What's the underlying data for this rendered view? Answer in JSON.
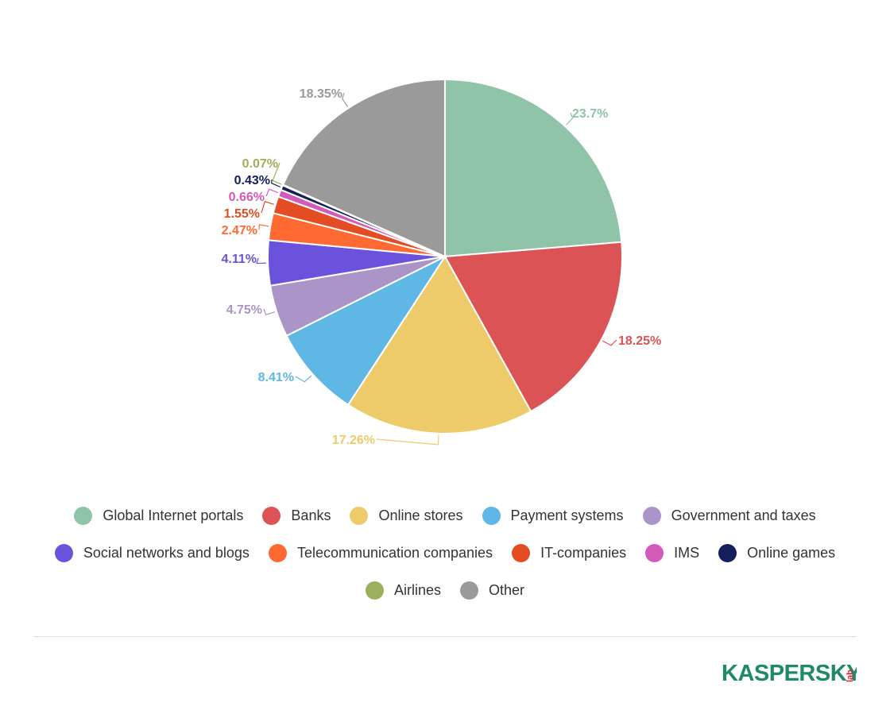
{
  "chart_data": {
    "type": "pie",
    "slices": [
      {
        "name": "Global Internet portals",
        "value": 23.7,
        "label": "23.7%",
        "color": "#8fc4a8"
      },
      {
        "name": "Banks",
        "value": 18.25,
        "label": "18.25%",
        "color": "#dc5355"
      },
      {
        "name": "Online stores",
        "value": 17.26,
        "label": "17.26%",
        "color": "#eecb6a"
      },
      {
        "name": "Payment systems",
        "value": 8.41,
        "label": "8.41%",
        "color": "#5fb7e5"
      },
      {
        "name": "Government and taxes",
        "value": 4.75,
        "label": "4.75%",
        "color": "#ab94c8"
      },
      {
        "name": "Social networks and blogs",
        "value": 4.11,
        "label": "4.11%",
        "color": "#6b52dd"
      },
      {
        "name": "Telecommunication companies",
        "value": 2.47,
        "label": "2.47%",
        "color": "#ff6a33"
      },
      {
        "name": "IT-companies",
        "value": 1.55,
        "label": "1.55%",
        "color": "#e44c24"
      },
      {
        "name": "IMS",
        "value": 0.66,
        "label": "0.66%",
        "color": "#d45ab9"
      },
      {
        "name": "Online games",
        "value": 0.43,
        "label": "0.43%",
        "color": "#141f5c"
      },
      {
        "name": "Airlines",
        "value": 0.07,
        "label": "0.07%",
        "color": "#9bb05a"
      },
      {
        "name": "Other",
        "value": 18.35,
        "label": "18.35%",
        "color": "#9a9a9a"
      }
    ],
    "legend_position": "bottom"
  },
  "legend_rows": [
    [
      0,
      1,
      2,
      3,
      4
    ],
    [
      5,
      6,
      7,
      8,
      9
    ],
    [
      10,
      11
    ]
  ],
  "logo": {
    "text": "KASPERSKY",
    "suffix": "lab",
    "color": "#1f8a66"
  }
}
